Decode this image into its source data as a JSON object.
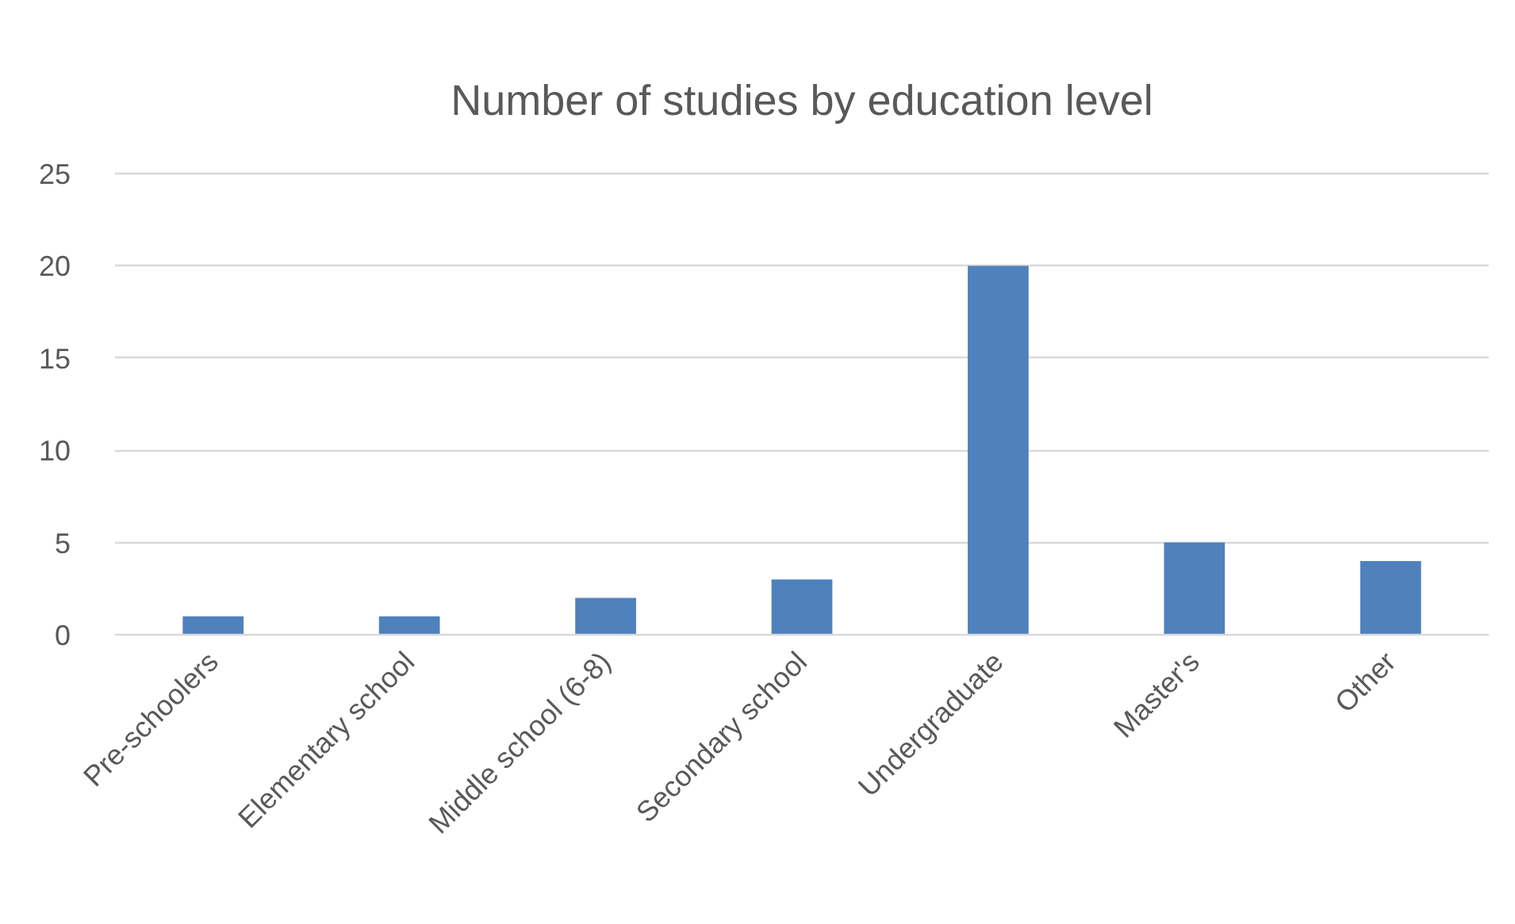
{
  "chart_data": {
    "type": "bar",
    "title": "Number of studies by education level",
    "categories": [
      "Pre-schoolers",
      "Elementary school",
      "Middle school (6-8)",
      "Secondary school",
      "Undergraduate",
      "Master's",
      "Other"
    ],
    "values": [
      1,
      1,
      2,
      3,
      20,
      5,
      4
    ],
    "color": "#4f81bd",
    "ylim": [
      0,
      25
    ],
    "yticks": [
      0,
      5,
      10,
      15,
      20,
      25
    ],
    "grid": "y"
  }
}
